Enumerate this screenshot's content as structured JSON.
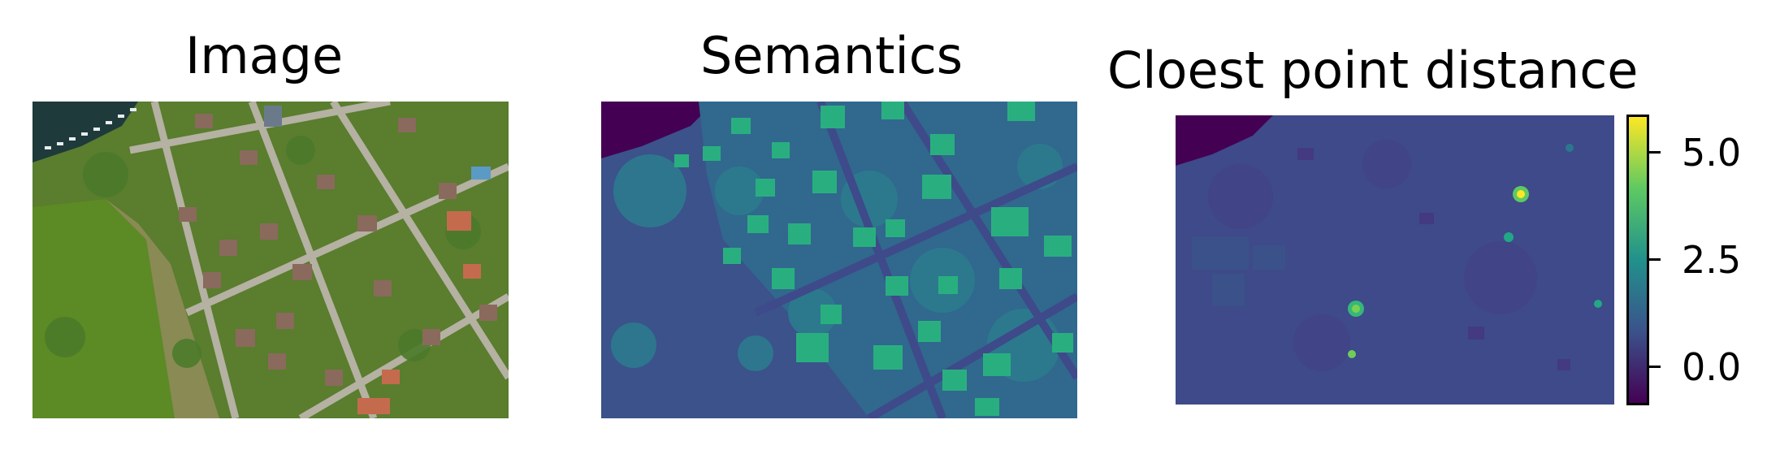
{
  "panels": [
    {
      "title": "Image"
    },
    {
      "title": "Semantics"
    },
    {
      "title": "Cloest point distance"
    }
  ],
  "colorbar": {
    "colormap": "viridis",
    "range": [
      -0.9,
      5.9
    ],
    "ticks": [
      {
        "value": 5.0,
        "label": "5.0"
      },
      {
        "value": 2.5,
        "label": "2.5"
      },
      {
        "value": 0.0,
        "label": "0.0"
      }
    ]
  },
  "colors": {
    "viridis_low": "#440154",
    "viridis_mid": "#21918c",
    "viridis_high": "#fde725"
  }
}
